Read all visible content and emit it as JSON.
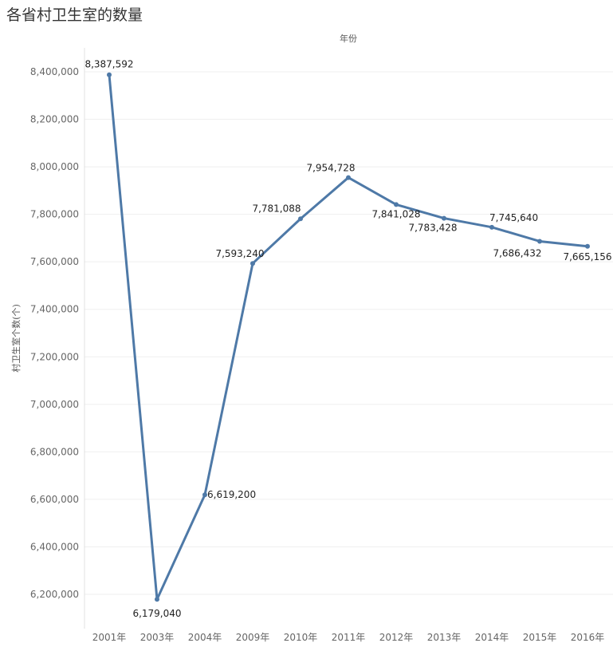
{
  "chart_data": {
    "type": "line",
    "title": "各省村卫生室的数量",
    "xlabel": "年份",
    "ylabel": "村卫生室个数(个)",
    "categories": [
      "2001年",
      "2003年",
      "2004年",
      "2009年",
      "2010年",
      "2011年",
      "2012年",
      "2013年",
      "2014年",
      "2015年",
      "2016年"
    ],
    "series": [
      {
        "values": [
          8387592,
          6179040,
          6619200,
          7593240,
          7781088,
          7954728,
          7841028,
          7783428,
          7745640,
          7686432,
          7665156
        ],
        "labels": [
          "8,387,592",
          "6,179,040",
          "6,619,200",
          "7,593,240",
          "7,781,088",
          "7,954,728",
          "7,841,028",
          "7,783,428",
          "7,745,640",
          "7,686,432",
          "7,665,156"
        ]
      }
    ],
    "yticks": [
      6200000,
      6400000,
      6600000,
      6800000,
      7000000,
      7200000,
      7400000,
      7600000,
      7800000,
      8000000,
      8200000,
      8400000
    ],
    "ytick_labels": [
      "6,200,000",
      "6,400,000",
      "6,600,000",
      "6,800,000",
      "7,000,000",
      "7,200,000",
      "7,400,000",
      "7,600,000",
      "7,800,000",
      "8,000,000",
      "8,200,000",
      "8,400,000"
    ],
    "line_color": "#4e79a7",
    "grid": true
  }
}
